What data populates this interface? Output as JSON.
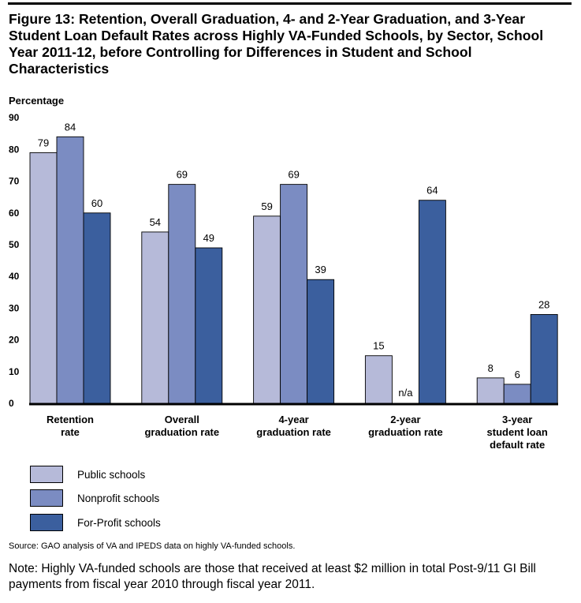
{
  "title": "Figure 13: Retention, Overall Graduation, 4- and 2-Year Graduation, and 3-Year Student Loan Default Rates across Highly VA-Funded Schools, by Sector, School Year 2011-12, before Controlling for Differences in Student and School Characteristics",
  "chart_data": {
    "type": "bar",
    "ylabel": "Percentage",
    "ylim": [
      0,
      90
    ],
    "yticks": [
      0,
      10,
      20,
      30,
      40,
      50,
      60,
      70,
      80,
      90
    ],
    "categories": [
      [
        "Retention",
        "rate"
      ],
      [
        "Overall",
        "graduation rate"
      ],
      [
        "4-year",
        "graduation rate"
      ],
      [
        "2-year",
        "graduation rate"
      ],
      [
        "3-year",
        "student loan",
        "default rate"
      ]
    ],
    "series": [
      {
        "name": "Public schools",
        "color": "#b6bad9",
        "values": [
          79,
          54,
          59,
          15,
          8
        ],
        "labels": [
          "79",
          "54",
          "59",
          "15",
          "8"
        ]
      },
      {
        "name": "Nonprofit schools",
        "color": "#7b8cc2",
        "values": [
          84,
          69,
          69,
          null,
          6
        ],
        "labels": [
          "84",
          "69",
          "69",
          "n/a",
          "6"
        ]
      },
      {
        "name": "For-Profit schools",
        "color": "#3b5f9e",
        "values": [
          60,
          49,
          39,
          64,
          28
        ],
        "labels": [
          "60",
          "49",
          "39",
          "64",
          "28"
        ]
      }
    ]
  },
  "source": "Source: GAO analysis of VA and IPEDS data on highly VA-funded schools.",
  "note": "Note: Highly VA-funded schools are those that received at least $2 million in total Post-9/11 GI Bill payments from fiscal year 2010 through fiscal year 2011."
}
